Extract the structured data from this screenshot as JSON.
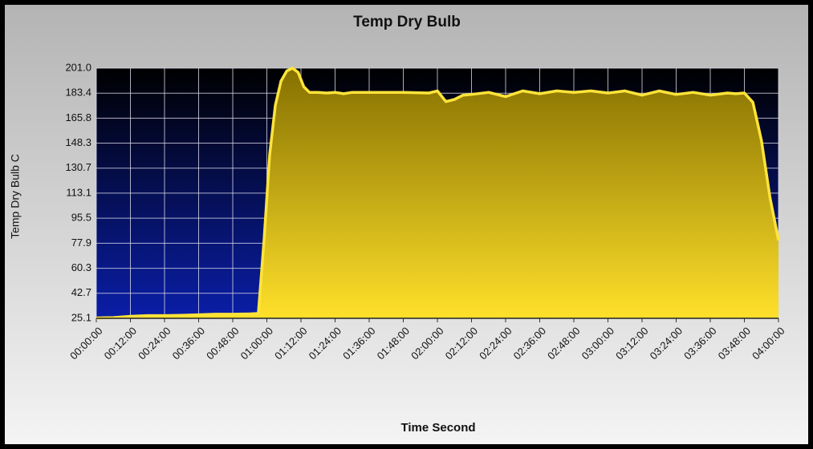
{
  "chart_data": {
    "type": "area",
    "title": "Temp Dry Bulb",
    "x_label": "Time Second",
    "y_label": "Temp Dry Bulb  C",
    "x": [
      0,
      360,
      720,
      1080,
      1440,
      1800,
      2160,
      2520,
      2880,
      3240,
      3420,
      3540,
      3660,
      3780,
      3900,
      4020,
      4140,
      4260,
      4380,
      4500,
      4680,
      4860,
      5040,
      5220,
      5400,
      5760,
      6120,
      6480,
      7020,
      7200,
      7380,
      7560,
      7740,
      7920,
      8280,
      8640,
      9000,
      9360,
      9720,
      10080,
      10440,
      10800,
      11160,
      11520,
      11880,
      12240,
      12600,
      12960,
      13320,
      13500,
      13680,
      13860,
      14040,
      14220,
      14400
    ],
    "values": [
      25.3,
      25.6,
      26.5,
      27.0,
      27.0,
      27.2,
      27.6,
      28.0,
      28.0,
      28.2,
      28.5,
      80,
      140,
      175,
      192,
      199,
      201,
      198,
      188,
      184,
      184,
      183.5,
      184,
      183,
      184,
      184,
      184,
      184,
      183.5,
      185,
      177.5,
      179,
      182,
      182.5,
      184,
      181,
      185,
      183,
      185,
      184,
      185,
      183.5,
      185,
      182,
      185,
      182.5,
      184,
      182,
      183.5,
      183,
      183.5,
      177,
      150,
      110,
      80
    ],
    "color": "#ffe43a",
    "xlim": [
      0,
      14400
    ],
    "xticks": [
      {
        "value": 0,
        "label": "00:00:00"
      },
      {
        "value": 720,
        "label": "00:12:00"
      },
      {
        "value": 1440,
        "label": "00:24:00"
      },
      {
        "value": 2160,
        "label": "00:36:00"
      },
      {
        "value": 2880,
        "label": "00:48:00"
      },
      {
        "value": 3600,
        "label": "01:00:00"
      },
      {
        "value": 4320,
        "label": "01:12:00"
      },
      {
        "value": 5040,
        "label": "01:24:00"
      },
      {
        "value": 5760,
        "label": "01:36:00"
      },
      {
        "value": 6480,
        "label": "01:48:00"
      },
      {
        "value": 7200,
        "label": "02:00:00"
      },
      {
        "value": 7920,
        "label": "02:12:00"
      },
      {
        "value": 8640,
        "label": "02:24:00"
      },
      {
        "value": 9360,
        "label": "02:36:00"
      },
      {
        "value": 10080,
        "label": "02:48:00"
      },
      {
        "value": 10800,
        "label": "03:00:00"
      },
      {
        "value": 11520,
        "label": "03:12:00"
      },
      {
        "value": 12240,
        "label": "03:24:00"
      },
      {
        "value": 12960,
        "label": "03:36:00"
      },
      {
        "value": 13680,
        "label": "03:48:00"
      },
      {
        "value": 14400,
        "label": "04:00:00"
      }
    ],
    "ylim": [
      25.1,
      201.0
    ],
    "yticks": [
      25.1,
      42.7,
      60.3,
      77.9,
      95.5,
      113.1,
      130.7,
      148.3,
      165.8,
      183.4,
      {
        "value": 201.0,
        "label": "201.0"
      }
    ],
    "grid": true
  }
}
